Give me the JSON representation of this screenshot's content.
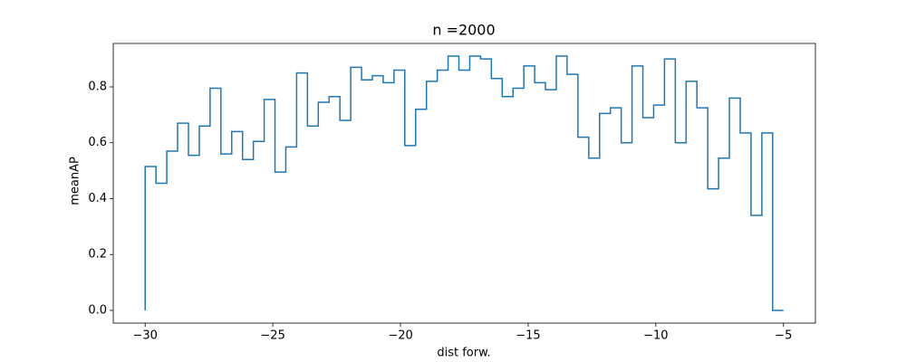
{
  "chart_data": {
    "type": "step",
    "title": "n =2000",
    "xlabel": "dist forw.",
    "ylabel": "meanAP",
    "color": "#1f77b4",
    "step_where": "pre",
    "x": [
      -30,
      -29.576,
      -29.153,
      -28.729,
      -28.305,
      -27.881,
      -27.458,
      -27.034,
      -26.61,
      -26.186,
      -25.763,
      -25.339,
      -24.915,
      -24.492,
      -24.068,
      -23.644,
      -23.22,
      -22.797,
      -22.373,
      -21.949,
      -21.525,
      -21.102,
      -20.678,
      -20.254,
      -19.831,
      -19.407,
      -18.983,
      -18.559,
      -18.136,
      -17.712,
      -17.288,
      -16.864,
      -16.441,
      -16.017,
      -15.593,
      -15.169,
      -14.746,
      -14.322,
      -13.898,
      -13.475,
      -13.051,
      -12.627,
      -12.203,
      -11.78,
      -11.356,
      -10.932,
      -10.508,
      -10.085,
      -9.661,
      -9.237,
      -8.814,
      -8.39,
      -7.966,
      -7.542,
      -7.119,
      -6.695,
      -6.271,
      -5.847,
      -5.424,
      -5
    ],
    "values": [
      0,
      0.515,
      0.455,
      0.57,
      0.67,
      0.555,
      0.66,
      0.795,
      0.56,
      0.64,
      0.54,
      0.605,
      0.755,
      0.495,
      0.585,
      0.85,
      0.66,
      0.745,
      0.765,
      0.68,
      0.87,
      0.825,
      0.84,
      0.815,
      0.86,
      0.59,
      0.72,
      0.82,
      0.86,
      0.91,
      0.86,
      0.91,
      0.9,
      0.83,
      0.765,
      0.795,
      0.875,
      0.815,
      0.79,
      0.91,
      0.845,
      0.62,
      0.545,
      0.705,
      0.725,
      0.6,
      0.875,
      0.69,
      0.735,
      0.9,
      0.6,
      0.82,
      0.725,
      0.435,
      0.545,
      0.76,
      0.635,
      0.34,
      0.635,
      0
    ],
    "xlim": [
      -31.25,
      -3.75
    ],
    "ylim": [
      -0.0455,
      0.9555
    ],
    "xticks": [
      {
        "value": -30,
        "label": "−30"
      },
      {
        "value": -25,
        "label": "−25"
      },
      {
        "value": -20,
        "label": "−20"
      },
      {
        "value": -15,
        "label": "−15"
      },
      {
        "value": -10,
        "label": "−10"
      },
      {
        "value": -5,
        "label": "−5"
      }
    ],
    "yticks": [
      {
        "value": 0,
        "label": "0.0"
      },
      0.2,
      0.4,
      0.6,
      0.8
    ],
    "grid": false
  }
}
